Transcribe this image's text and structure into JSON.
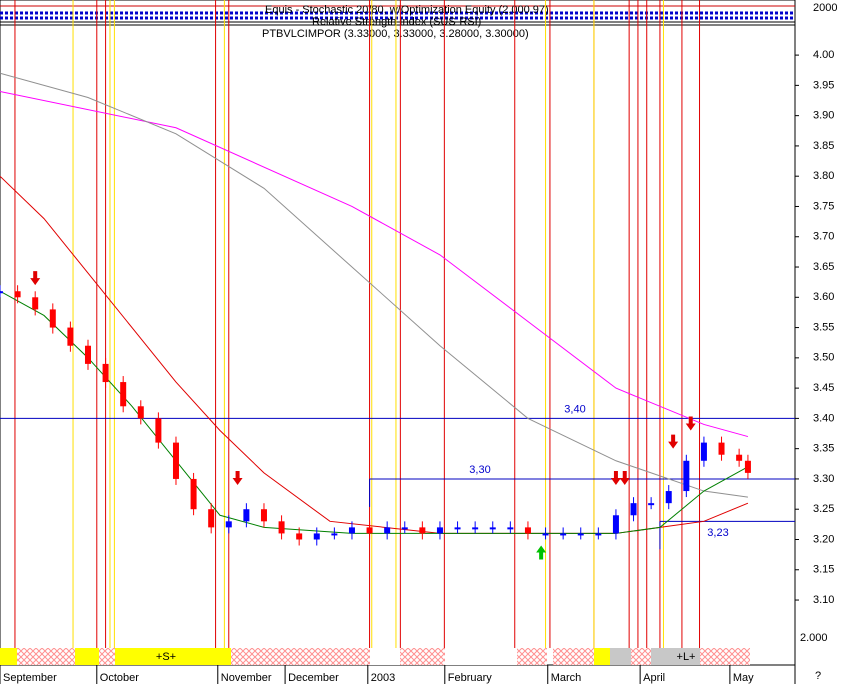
{
  "chart_data": {
    "type": "candlestick",
    "title": "Equis - Stochastic 20/80, w/Optimization Equity (2,000.97)",
    "subtitle": "Relative Strength Index (SUS-RSI)",
    "symbol_label": "PTBVLCIMPOR (3.33000, 3.33000, 3.28000, 3.30000)",
    "top_axis_label": "2000",
    "bottom_axis_label": "2.000",
    "corner_label": "?",
    "x": [
      0,
      4,
      8,
      12,
      16,
      20,
      24,
      28,
      32,
      36,
      40,
      44,
      48,
      52,
      56,
      60,
      64,
      68,
      72,
      76,
      80,
      84,
      88,
      92,
      96,
      100,
      104,
      108,
      112,
      116,
      120,
      124,
      128,
      132,
      136,
      140,
      144,
      148,
      152,
      156,
      160,
      164,
      168,
      170
    ],
    "values": [
      3.61,
      3.6,
      3.58,
      3.55,
      3.52,
      3.49,
      3.46,
      3.42,
      3.4,
      3.36,
      3.3,
      3.25,
      3.22,
      3.23,
      3.25,
      3.23,
      3.21,
      3.2,
      3.21,
      3.21,
      3.22,
      3.21,
      3.22,
      3.22,
      3.21,
      3.22,
      3.22,
      3.22,
      3.22,
      3.22,
      3.21,
      3.21,
      3.21,
      3.21,
      3.21,
      3.24,
      3.26,
      3.26,
      3.28,
      3.33,
      3.36,
      3.34,
      3.33,
      3.31
    ],
    "up_color": "#0000ff",
    "down_color": "#ff0000",
    "moving_averages": [
      {
        "color": "#ff00ff",
        "x": [
          0,
          40,
          80,
          100,
          120,
          140,
          160,
          170
        ],
        "values": [
          3.94,
          3.88,
          3.75,
          3.67,
          3.56,
          3.45,
          3.39,
          3.37
        ]
      },
      {
        "color": "#909090",
        "x": [
          0,
          20,
          40,
          60,
          80,
          100,
          120,
          140,
          160,
          170
        ],
        "values": [
          3.97,
          3.93,
          3.87,
          3.78,
          3.65,
          3.52,
          3.4,
          3.33,
          3.28,
          3.27
        ]
      },
      {
        "color": "#e00000",
        "x": [
          0,
          10,
          20,
          30,
          40,
          50,
          60,
          75,
          100,
          140,
          160,
          170
        ],
        "values": [
          3.8,
          3.73,
          3.64,
          3.55,
          3.46,
          3.38,
          3.31,
          3.23,
          3.21,
          3.21,
          3.23,
          3.26
        ]
      },
      {
        "color": "#008000",
        "x": [
          0,
          10,
          20,
          30,
          40,
          50,
          60,
          80,
          140,
          150,
          160,
          170
        ],
        "values": [
          3.61,
          3.57,
          3.5,
          3.42,
          3.33,
          3.24,
          3.22,
          3.21,
          3.21,
          3.22,
          3.28,
          3.32
        ]
      }
    ],
    "levels": [
      {
        "value": 3.4,
        "label": "3,40",
        "start": 0
      },
      {
        "value": 3.3,
        "label": "3,30",
        "start": 84
      },
      {
        "value": 3.23,
        "label": "3,23",
        "start": 150
      }
    ],
    "red_lines": [
      3.4,
      22,
      24,
      49,
      52,
      84,
      91,
      101,
      117,
      125,
      135,
      143,
      145,
      147,
      150,
      155,
      159
    ],
    "yellow_lines": [
      16.6,
      25,
      26,
      51,
      84.5,
      90,
      124,
      135,
      150.8
    ],
    "sell_signals": [
      {
        "day": 8,
        "price": 3.62
      },
      {
        "day": 54,
        "price": 3.29
      },
      {
        "day": 140,
        "price": 3.29
      },
      {
        "day": 142,
        "price": 3.29
      },
      {
        "day": 153,
        "price": 3.35
      },
      {
        "day": 157,
        "price": 3.38
      }
    ],
    "buy_signals": [
      {
        "day": 123,
        "price": 3.19
      }
    ],
    "band_labels": [
      "+S+",
      "+L+"
    ],
    "xlim": [
      0,
      180.7
    ],
    "ylim": [
      3.034,
      4.091
    ],
    "xticks": [
      {
        "value": 0,
        "label": "September"
      },
      {
        "value": 22,
        "label": "October"
      },
      {
        "value": 49.5,
        "label": "November"
      },
      {
        "value": 64.8,
        "label": "December"
      },
      {
        "value": 83.6,
        "label": "2003"
      },
      {
        "value": 101.1,
        "label": "February"
      },
      {
        "value": 124.5,
        "label": "March"
      },
      {
        "value": 145.5,
        "label": "April"
      },
      {
        "value": 165.9,
        "label": "May"
      }
    ],
    "yticks": [
      {
        "value": 4.0,
        "label": "4.00"
      },
      {
        "value": 3.95,
        "label": "3.95"
      },
      {
        "value": 3.9,
        "label": "3.90"
      },
      {
        "value": 3.85,
        "label": "3.85"
      },
      {
        "value": 3.8,
        "label": "3.80"
      },
      {
        "value": 3.75,
        "label": "3.75"
      },
      {
        "value": 3.7,
        "label": "3.70"
      },
      {
        "value": 3.65,
        "label": "3.65"
      },
      {
        "value": 3.6,
        "label": "3.60"
      },
      {
        "value": 3.55,
        "label": "3.55"
      },
      {
        "value": 3.5,
        "label": "3.50"
      },
      {
        "value": 3.45,
        "label": "3.45"
      },
      {
        "value": 3.4,
        "label": "3.40"
      },
      {
        "value": 3.35,
        "label": "3.35"
      },
      {
        "value": 3.3,
        "label": "3.30"
      },
      {
        "value": 3.25,
        "label": "3.25"
      },
      {
        "value": 3.2,
        "label": "3.20"
      },
      {
        "value": 3.15,
        "label": "3.15"
      },
      {
        "value": 3.1,
        "label": "3.10"
      }
    ]
  }
}
